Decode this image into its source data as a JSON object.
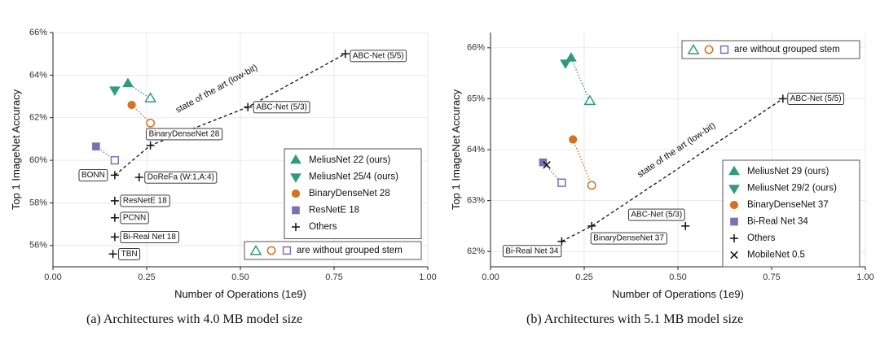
{
  "figure": {
    "caption_a": "(a) Architectures with 4.0 MB model size",
    "caption_b": "(b) Architectures with 5.1 MB model size"
  },
  "colors": {
    "green": "#2a9d7e",
    "orange": "#d9701c",
    "purple": "#7b70b8",
    "black": "#111111",
    "grid": "#e4e4e4"
  },
  "chart_data": [
    {
      "type": "scatter",
      "title": "",
      "xlabel": "Number of Operations (1e9)",
      "ylabel": "Top 1 ImageNet Accuracy",
      "xlim": [
        0.0,
        1.0
      ],
      "ylim": [
        55,
        66
      ],
      "xticks": [
        "0.00",
        "0.25",
        "0.50",
        "0.75",
        "1.00"
      ],
      "xtick_values": [
        0.0,
        0.25,
        0.5,
        0.75,
        1.0
      ],
      "yticks": [
        "56%",
        "58%",
        "60%",
        "62%",
        "64%",
        "66%"
      ],
      "ytick_values": [
        56,
        58,
        60,
        62,
        64,
        66
      ],
      "series": [
        {
          "name": "MeliusNet 22 (ours)",
          "marker": "triangle",
          "color": "green",
          "points": [
            {
              "x": 0.2,
              "y": 63.6
            }
          ]
        },
        {
          "name": "MeliusNet 25/4 (ours)",
          "marker": "triangle-down",
          "color": "green",
          "points": [
            {
              "x": 0.165,
              "y": 63.3
            }
          ]
        },
        {
          "name": "BinaryDenseNet 28",
          "marker": "circle",
          "color": "orange",
          "points": [
            {
              "x": 0.21,
              "y": 62.6
            }
          ]
        },
        {
          "name": "ResNetE 18",
          "marker": "square",
          "color": "purple",
          "points": [
            {
              "x": 0.115,
              "y": 60.65
            }
          ]
        },
        {
          "name": "Others",
          "marker": "plus",
          "color": "black",
          "points": [
            {
              "x": 0.78,
              "y": 65.0,
              "label": "ABC-Net (5/5)"
            },
            {
              "x": 0.52,
              "y": 62.5,
              "label": "ABC-Net (5/3)"
            },
            {
              "x": 0.26,
              "y": 60.7,
              "label": "BinaryDenseNet 28"
            },
            {
              "x": 0.165,
              "y": 59.3,
              "label": "BONN"
            },
            {
              "x": 0.23,
              "y": 59.2,
              "label": "DoReFa (W:1,A:4)"
            },
            {
              "x": 0.165,
              "y": 58.1,
              "label": "ResNetE 18"
            },
            {
              "x": 0.165,
              "y": 57.3,
              "label": "PCNN"
            },
            {
              "x": 0.165,
              "y": 56.4,
              "label": "Bi-Real Net 18"
            },
            {
              "x": 0.16,
              "y": 55.6,
              "label": "TBN"
            }
          ]
        }
      ],
      "no_stem_points": [
        {
          "x": 0.26,
          "y": 62.9,
          "marker": "triangle",
          "color": "green",
          "from": {
            "x": 0.2,
            "y": 63.6
          }
        },
        {
          "x": 0.26,
          "y": 61.75,
          "marker": "circle",
          "color": "orange",
          "from": {
            "x": 0.21,
            "y": 62.6
          }
        },
        {
          "x": 0.165,
          "y": 60.0,
          "marker": "square",
          "color": "purple",
          "from": {
            "x": 0.115,
            "y": 60.65
          }
        }
      ],
      "sota_line": [
        {
          "x": 0.165,
          "y": 59.3
        },
        {
          "x": 0.26,
          "y": 60.7
        },
        {
          "x": 0.52,
          "y": 62.5
        },
        {
          "x": 0.78,
          "y": 65.0
        }
      ],
      "sota_label": "state of the art (low-bit)",
      "sota_label_at": {
        "x": 0.44,
        "y": 63.25
      },
      "legend_position": "center-right",
      "note_text": "are without grouped stem",
      "note_position": "bottom-right"
    },
    {
      "type": "scatter",
      "title": "",
      "xlabel": "Number of Operations (1e9)",
      "ylabel": "Top 1 ImageNet Accuracy",
      "xlim": [
        0.0,
        1.0
      ],
      "ylim": [
        61.7,
        66.3
      ],
      "xticks": [
        "0.00",
        "0.25",
        "0.50",
        "0.75",
        "1.00"
      ],
      "xtick_values": [
        0.0,
        0.25,
        0.5,
        0.75,
        1.0
      ],
      "yticks": [
        "62%",
        "63%",
        "64%",
        "65%",
        "66%"
      ],
      "ytick_values": [
        62,
        63,
        64,
        65,
        66
      ],
      "series": [
        {
          "name": "MeliusNet 29 (ours)",
          "marker": "triangle",
          "color": "green",
          "points": [
            {
              "x": 0.215,
              "y": 65.8
            }
          ]
        },
        {
          "name": "MeliusNet 29/2 (ours)",
          "marker": "triangle-down",
          "color": "green",
          "points": [
            {
              "x": 0.2,
              "y": 65.7
            }
          ]
        },
        {
          "name": "BinaryDenseNet 37",
          "marker": "circle",
          "color": "orange",
          "points": [
            {
              "x": 0.22,
              "y": 64.2
            }
          ]
        },
        {
          "name": "Bi-Real Net 34",
          "marker": "square",
          "color": "purple",
          "points": [
            {
              "x": 0.14,
              "y": 63.75
            }
          ]
        },
        {
          "name": "Others",
          "marker": "plus",
          "color": "black",
          "points": [
            {
              "x": 0.78,
              "y": 65.0,
              "label": "ABC-Net (5/5)"
            },
            {
              "x": 0.52,
              "y": 62.5,
              "label": "ABC-Net (5/3)"
            },
            {
              "x": 0.27,
              "y": 62.5,
              "label": "BinaryDenseNet 37"
            },
            {
              "x": 0.19,
              "y": 62.2,
              "label": "Bi-Real Net 34"
            }
          ]
        },
        {
          "name": "MobileNet 0.5",
          "marker": "cross",
          "color": "black",
          "points": [
            {
              "x": 0.15,
              "y": 63.7
            }
          ]
        }
      ],
      "no_stem_points": [
        {
          "x": 0.265,
          "y": 64.95,
          "marker": "triangle",
          "color": "green",
          "from": {
            "x": 0.215,
            "y": 65.8
          }
        },
        {
          "x": 0.27,
          "y": 63.3,
          "marker": "circle",
          "color": "orange",
          "from": {
            "x": 0.22,
            "y": 64.2
          }
        },
        {
          "x": 0.19,
          "y": 63.35,
          "marker": "square",
          "color": "purple",
          "from": {
            "x": 0.14,
            "y": 63.75
          }
        }
      ],
      "sota_line": [
        {
          "x": 0.19,
          "y": 62.2
        },
        {
          "x": 0.27,
          "y": 62.5
        },
        {
          "x": 0.78,
          "y": 65.0
        }
      ],
      "sota_label": "state of the art (low-bit)",
      "sota_label_at": {
        "x": 0.5,
        "y": 63.95
      },
      "legend_position": "bottom-right",
      "note_text": "are without grouped stem",
      "note_position": "top-right"
    }
  ]
}
